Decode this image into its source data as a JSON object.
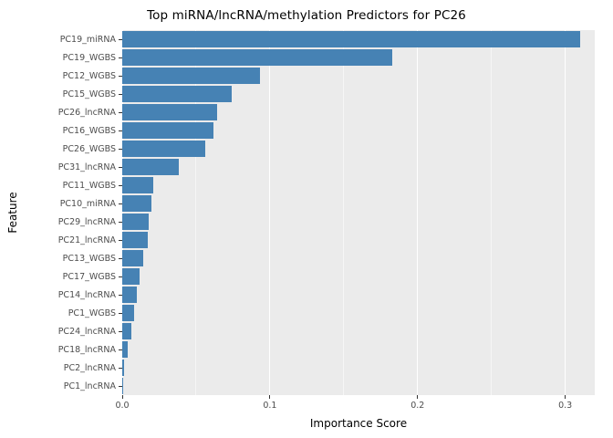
{
  "chart_data": {
    "type": "bar",
    "orientation": "horizontal",
    "title": "Top miRNA/lncRNA/methylation Predictors for PC26",
    "xlabel": "Importance Score",
    "ylabel": "Feature",
    "categories": [
      "PC19_miRNA",
      "PC19_WGBS",
      "PC12_WGBS",
      "PC15_WGBS",
      "PC26_lncRNA",
      "PC16_WGBS",
      "PC26_WGBS",
      "PC31_lncRNA",
      "PC11_WGBS",
      "PC10_miRNA",
      "PC29_lncRNA",
      "PC21_lncRNA",
      "PC13_WGBS",
      "PC17_WGBS",
      "PC14_lncRNA",
      "PC1_WGBS",
      "PC24_lncRNA",
      "PC18_lncRNA",
      "PC2_lncRNA",
      "PC1_lncRNA"
    ],
    "values": [
      0.31,
      0.183,
      0.093,
      0.074,
      0.064,
      0.062,
      0.056,
      0.038,
      0.021,
      0.02,
      0.018,
      0.017,
      0.014,
      0.012,
      0.01,
      0.008,
      0.006,
      0.004,
      0.001,
      0.0005
    ],
    "xlim": [
      0,
      0.32
    ],
    "xticks": [
      0.0,
      0.1,
      0.2,
      0.3
    ],
    "xtick_labels": [
      "0.0",
      "0.1",
      "0.2",
      "0.3"
    ],
    "minor_ticks": [
      0.05,
      0.15,
      0.25
    ],
    "grid": true,
    "legend": "none",
    "bar_color": "#4682B4",
    "panel_color": "#EBEBEB",
    "grid_color": "#FFFFFF",
    "axis_text_color": "#4D4D4D"
  }
}
